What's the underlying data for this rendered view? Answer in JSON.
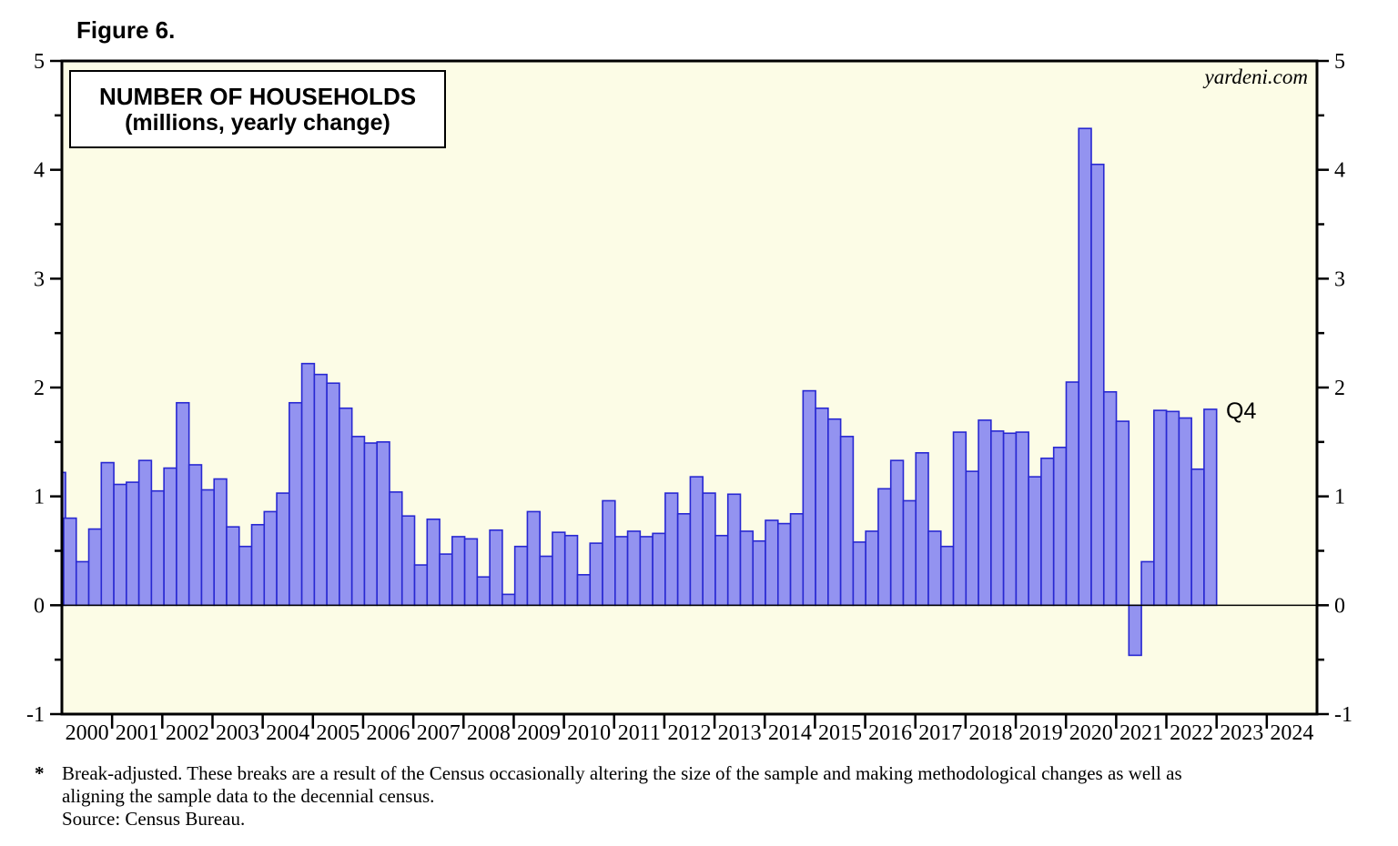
{
  "figure_label": "Figure 6.",
  "watermark": "yardeni.com",
  "annotation": {
    "text": "Q4",
    "attached_to": "2022Q4"
  },
  "footnote": {
    "marker": "*",
    "line1": "Break-adjusted. These breaks are a result of the Census occasionally altering the size of the sample and making methodological changes as well as",
    "line2": "aligning the sample data to the decennial census.",
    "line3": "Source: Census Bureau."
  },
  "chart_data": {
    "type": "bar",
    "title": "NUMBER OF HOUSEHOLDS",
    "subtitle": "(millions, yearly change)",
    "ylabel": "millions, yearly change",
    "ylim": [
      -1,
      5
    ],
    "y_major_step": 1,
    "y_minor_step": 0.5,
    "y_tick_labels": [
      "5",
      "4",
      "3",
      "2",
      "1",
      "0",
      "-1"
    ],
    "grid": "off",
    "legend": "none",
    "colors": {
      "plot_bg": "#FCFCE6",
      "bar_fill": "#9393F0",
      "bar_stroke": "#2828D2",
      "frame": "#000000"
    },
    "x_year_labels": [
      "2000",
      "2001",
      "2002",
      "2003",
      "2004",
      "2005",
      "2006",
      "2007",
      "2008",
      "2009",
      "2010",
      "2011",
      "2012",
      "2013",
      "2014",
      "2015",
      "2016",
      "2017",
      "2018",
      "2019",
      "2020",
      "2021",
      "2022",
      "2023",
      "2024"
    ],
    "leading_partial_bar": {
      "period": "1999Q4",
      "value": 1.22
    },
    "quarterly": [
      [
        "2000Q1",
        0.8
      ],
      [
        "2000Q2",
        0.4
      ],
      [
        "2000Q3",
        0.7
      ],
      [
        "2000Q4",
        1.31
      ],
      [
        "2001Q1",
        1.11
      ],
      [
        "2001Q2",
        1.13
      ],
      [
        "2001Q3",
        1.33
      ],
      [
        "2001Q4",
        1.05
      ],
      [
        "2002Q1",
        1.26
      ],
      [
        "2002Q2",
        1.86
      ],
      [
        "2002Q3",
        1.29
      ],
      [
        "2002Q4",
        1.06
      ],
      [
        "2003Q1",
        1.16
      ],
      [
        "2003Q2",
        0.72
      ],
      [
        "2003Q3",
        0.54
      ],
      [
        "2003Q4",
        0.74
      ],
      [
        "2004Q1",
        0.86
      ],
      [
        "2004Q2",
        1.03
      ],
      [
        "2004Q3",
        1.86
      ],
      [
        "2004Q4",
        2.22
      ],
      [
        "2005Q1",
        2.12
      ],
      [
        "2005Q2",
        2.04
      ],
      [
        "2005Q3",
        1.81
      ],
      [
        "2005Q4",
        1.55
      ],
      [
        "2006Q1",
        1.49
      ],
      [
        "2006Q2",
        1.5
      ],
      [
        "2006Q3",
        1.04
      ],
      [
        "2006Q4",
        0.82
      ],
      [
        "2007Q1",
        0.37
      ],
      [
        "2007Q2",
        0.79
      ],
      [
        "2007Q3",
        0.47
      ],
      [
        "2007Q4",
        0.63
      ],
      [
        "2008Q1",
        0.61
      ],
      [
        "2008Q2",
        0.26
      ],
      [
        "2008Q3",
        0.69
      ],
      [
        "2008Q4",
        0.1
      ],
      [
        "2009Q1",
        0.54
      ],
      [
        "2009Q2",
        0.86
      ],
      [
        "2009Q3",
        0.45
      ],
      [
        "2009Q4",
        0.67
      ],
      [
        "2010Q1",
        0.64
      ],
      [
        "2010Q2",
        0.28
      ],
      [
        "2010Q3",
        0.57
      ],
      [
        "2010Q4",
        0.96
      ],
      [
        "2011Q1",
        0.63
      ],
      [
        "2011Q2",
        0.68
      ],
      [
        "2011Q3",
        0.63
      ],
      [
        "2011Q4",
        0.66
      ],
      [
        "2012Q1",
        1.03
      ],
      [
        "2012Q2",
        0.84
      ],
      [
        "2012Q3",
        1.18
      ],
      [
        "2012Q4",
        1.03
      ],
      [
        "2013Q1",
        0.64
      ],
      [
        "2013Q2",
        1.02
      ],
      [
        "2013Q3",
        0.68
      ],
      [
        "2013Q4",
        0.59
      ],
      [
        "2014Q1",
        0.78
      ],
      [
        "2014Q2",
        0.75
      ],
      [
        "2014Q3",
        0.84
      ],
      [
        "2014Q4",
        1.97
      ],
      [
        "2015Q1",
        1.81
      ],
      [
        "2015Q2",
        1.71
      ],
      [
        "2015Q3",
        1.55
      ],
      [
        "2015Q4",
        0.58
      ],
      [
        "2016Q1",
        0.68
      ],
      [
        "2016Q2",
        1.07
      ],
      [
        "2016Q3",
        1.33
      ],
      [
        "2016Q4",
        0.96
      ],
      [
        "2017Q1",
        1.4
      ],
      [
        "2017Q2",
        0.68
      ],
      [
        "2017Q3",
        0.54
      ],
      [
        "2017Q4",
        1.59
      ],
      [
        "2018Q1",
        1.23
      ],
      [
        "2018Q2",
        1.7
      ],
      [
        "2018Q3",
        1.6
      ],
      [
        "2018Q4",
        1.58
      ],
      [
        "2019Q1",
        1.59
      ],
      [
        "2019Q2",
        1.18
      ],
      [
        "2019Q3",
        1.35
      ],
      [
        "2019Q4",
        1.45
      ],
      [
        "2020Q1",
        2.05
      ],
      [
        "2020Q2",
        4.38
      ],
      [
        "2020Q3",
        4.05
      ],
      [
        "2020Q4",
        1.96
      ],
      [
        "2021Q1",
        1.69
      ],
      [
        "2021Q2",
        -0.46
      ],
      [
        "2021Q3",
        0.4
      ],
      [
        "2021Q4",
        1.79
      ],
      [
        "2022Q1",
        1.78
      ],
      [
        "2022Q2",
        1.72
      ],
      [
        "2022Q3",
        1.25
      ],
      [
        "2022Q4",
        1.8
      ]
    ]
  }
}
